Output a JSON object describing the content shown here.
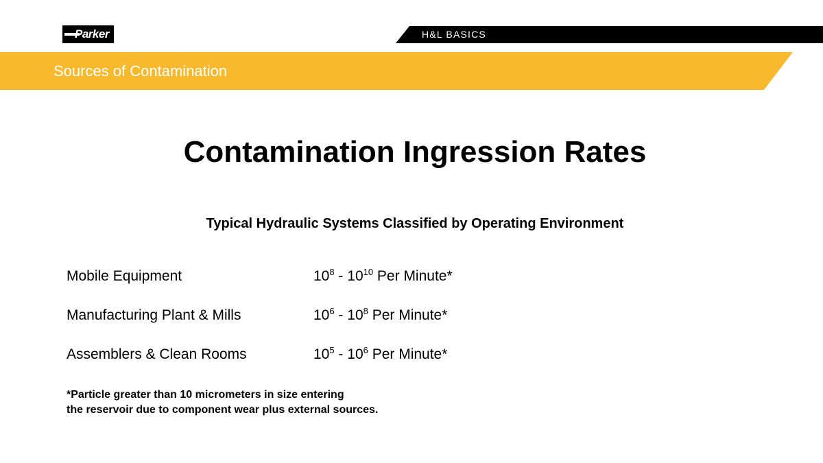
{
  "header": {
    "logo_text": "Parker",
    "section_tag": "H&L BASICS",
    "banner_title": "Sources of Contamination"
  },
  "main": {
    "title": "Contamination Ingression Rates",
    "subtitle": "Typical Hydraulic Systems Classified by Operating Environment",
    "rows": [
      {
        "environment": "Mobile Equipment",
        "base": "10",
        "exp_low": "8",
        "separator": " - ",
        "exp_high": "10",
        "unit": " Per Minute*"
      },
      {
        "environment": "Manufacturing Plant & Mills",
        "base": "10",
        "exp_low": "6",
        "separator": " - ",
        "exp_high": "8",
        "unit": " Per Minute*"
      },
      {
        "environment": "Assemblers & Clean Rooms",
        "base": "10",
        "exp_low": "5",
        "separator": " - ",
        "exp_high": "6",
        "unit": " Per Minute*"
      }
    ],
    "footnote_line1": "*Particle greater than 10 micrometers in size entering",
    "footnote_line2": "the reservoir due to component wear plus external sources."
  },
  "colors": {
    "banner": "#f8b92d",
    "bar": "#000000"
  }
}
